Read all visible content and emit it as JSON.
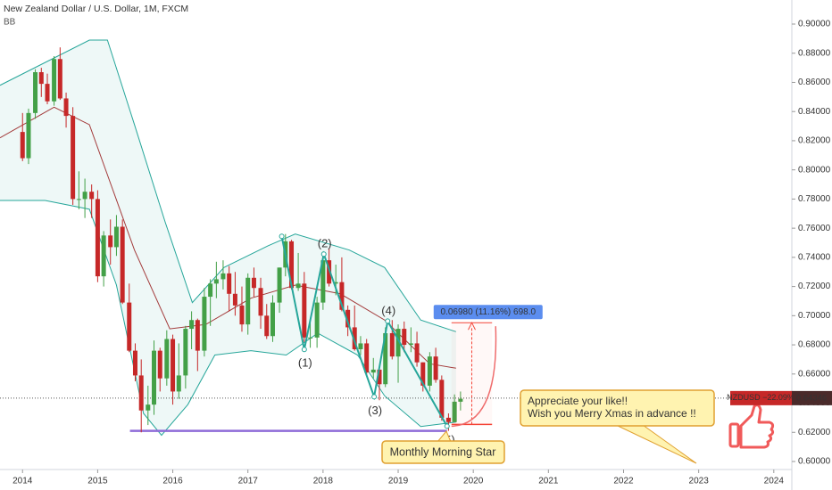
{
  "chart_data": {
    "type": "candlestick",
    "title": "New Zealand Dollar / U.S. Dollar, 1M, FXCM",
    "indicator": "BB",
    "xlim": [
      2013.7,
      2024.24
    ],
    "xticks": [
      2014,
      2015,
      2016,
      2017,
      2018,
      2019,
      2020,
      2021,
      2022,
      2023,
      2024
    ],
    "ylim": [
      0.5945,
      0.9165
    ],
    "yticks": [
      {
        "value": 0.6,
        "label": "0.60000"
      },
      {
        "value": 0.62,
        "label": "0.62000"
      },
      {
        "value": 0.64,
        "label": "0.64000"
      },
      {
        "value": 0.66,
        "label": "0.66000"
      },
      {
        "value": 0.68,
        "label": "0.68000"
      },
      {
        "value": 0.7,
        "label": "0.70000"
      },
      {
        "value": 0.72,
        "label": "0.72000"
      },
      {
        "value": 0.74,
        "label": "0.74000"
      },
      {
        "value": 0.76,
        "label": "0.76000"
      },
      {
        "value": 0.78,
        "label": "0.78000"
      },
      {
        "value": 0.8,
        "label": "0.80000"
      },
      {
        "value": 0.82,
        "label": "0.82000"
      },
      {
        "value": 0.84,
        "label": "0.84000"
      },
      {
        "value": 0.86,
        "label": "0.86000"
      },
      {
        "value": 0.88,
        "label": "0.88000"
      },
      {
        "value": 0.9,
        "label": "0.90000"
      }
    ],
    "up_color": "#43a047",
    "down_color": "#c62828",
    "candles": {
      "x": [
        2014.0,
        2014.08,
        2014.17,
        2014.25,
        2014.33,
        2014.42,
        2014.5,
        2014.58,
        2014.67,
        2014.75,
        2014.83,
        2014.92,
        2015.0,
        2015.08,
        2015.17,
        2015.25,
        2015.33,
        2015.42,
        2015.5,
        2015.58,
        2015.67,
        2015.75,
        2015.83,
        2015.92,
        2016.0,
        2016.08,
        2016.17,
        2016.25,
        2016.33,
        2016.42,
        2016.5,
        2016.58,
        2016.67,
        2016.75,
        2016.83,
        2016.92,
        2017.0,
        2017.08,
        2017.17,
        2017.25,
        2017.33,
        2017.42,
        2017.5,
        2017.58,
        2017.67,
        2017.75,
        2017.83,
        2017.92,
        2018.0,
        2018.08,
        2018.17,
        2018.25,
        2018.33,
        2018.42,
        2018.5,
        2018.58,
        2018.67,
        2018.75,
        2018.83,
        2018.92,
        2019.0,
        2019.08,
        2019.17,
        2019.25,
        2019.33,
        2019.42,
        2019.5,
        2019.58,
        2019.67,
        2019.75,
        2019.83
      ],
      "open": [
        0.826,
        0.808,
        0.839,
        0.867,
        0.859,
        0.847,
        0.876,
        0.849,
        0.837,
        0.78,
        0.78,
        0.785,
        0.78,
        0.727,
        0.755,
        0.747,
        0.761,
        0.709,
        0.676,
        0.659,
        0.635,
        0.639,
        0.676,
        0.657,
        0.684,
        0.648,
        0.659,
        0.691,
        0.697,
        0.676,
        0.713,
        0.722,
        0.725,
        0.729,
        0.715,
        0.707,
        0.694,
        0.726,
        0.719,
        0.7,
        0.686,
        0.709,
        0.733,
        0.751,
        0.719,
        0.722,
        0.685,
        0.685,
        0.709,
        0.738,
        0.722,
        0.723,
        0.704,
        0.692,
        0.677,
        0.681,
        0.661,
        0.663,
        0.653,
        0.688,
        0.672,
        0.691,
        0.68,
        0.681,
        0.668,
        0.652,
        0.672,
        0.656,
        0.63,
        0.627,
        0.641
      ],
      "high": [
        0.839,
        0.842,
        0.869,
        0.87,
        0.866,
        0.878,
        0.884,
        0.853,
        0.843,
        0.799,
        0.794,
        0.79,
        0.786,
        0.758,
        0.766,
        0.769,
        0.766,
        0.722,
        0.681,
        0.67,
        0.652,
        0.683,
        0.678,
        0.69,
        0.687,
        0.681,
        0.693,
        0.703,
        0.698,
        0.719,
        0.725,
        0.737,
        0.738,
        0.734,
        0.73,
        0.72,
        0.729,
        0.733,
        0.726,
        0.708,
        0.714,
        0.733,
        0.756,
        0.752,
        0.743,
        0.73,
        0.697,
        0.713,
        0.744,
        0.746,
        0.735,
        0.74,
        0.707,
        0.707,
        0.686,
        0.684,
        0.671,
        0.664,
        0.692,
        0.697,
        0.694,
        0.696,
        0.692,
        0.689,
        0.668,
        0.675,
        0.678,
        0.659,
        0.633,
        0.646,
        0.648
      ],
      "low": [
        0.806,
        0.804,
        0.835,
        0.85,
        0.845,
        0.844,
        0.848,
        0.829,
        0.776,
        0.773,
        0.767,
        0.767,
        0.723,
        0.72,
        0.735,
        0.741,
        0.708,
        0.675,
        0.655,
        0.62,
        0.625,
        0.632,
        0.648,
        0.652,
        0.639,
        0.643,
        0.65,
        0.677,
        0.662,
        0.672,
        0.693,
        0.712,
        0.718,
        0.703,
        0.7,
        0.689,
        0.687,
        0.713,
        0.691,
        0.684,
        0.682,
        0.702,
        0.727,
        0.718,
        0.717,
        0.682,
        0.678,
        0.678,
        0.704,
        0.72,
        0.714,
        0.703,
        0.686,
        0.676,
        0.673,
        0.659,
        0.657,
        0.642,
        0.651,
        0.67,
        0.654,
        0.675,
        0.675,
        0.665,
        0.648,
        0.648,
        0.654,
        0.628,
        0.621,
        0.627,
        0.635
      ],
      "close": [
        0.808,
        0.839,
        0.867,
        0.859,
        0.847,
        0.876,
        0.849,
        0.837,
        0.78,
        0.78,
        0.785,
        0.78,
        0.727,
        0.755,
        0.747,
        0.761,
        0.709,
        0.676,
        0.659,
        0.635,
        0.639,
        0.676,
        0.657,
        0.684,
        0.648,
        0.659,
        0.691,
        0.697,
        0.676,
        0.713,
        0.722,
        0.725,
        0.729,
        0.715,
        0.707,
        0.694,
        0.726,
        0.719,
        0.7,
        0.686,
        0.709,
        0.733,
        0.751,
        0.719,
        0.722,
        0.685,
        0.685,
        0.709,
        0.738,
        0.722,
        0.723,
        0.704,
        0.692,
        0.677,
        0.681,
        0.661,
        0.663,
        0.653,
        0.688,
        0.672,
        0.691,
        0.68,
        0.681,
        0.668,
        0.652,
        0.672,
        0.656,
        0.63,
        0.627,
        0.641,
        0.643
      ]
    },
    "bollinger": {
      "band_color": "#26a69a",
      "middle_color": "#a33b3b",
      "upper": {
        "x": [
          2013.7,
          2014.89,
          2015.13,
          2015.49,
          2015.9,
          2016.26,
          2016.68,
          2017.27,
          2017.63,
          2018.35,
          2018.82,
          2019.3,
          2019.77
        ],
        "values": [
          0.858,
          0.889,
          0.889,
          0.831,
          0.764,
          0.709,
          0.733,
          0.748,
          0.756,
          0.745,
          0.733,
          0.697,
          0.689
        ]
      },
      "middle": {
        "x": [
          2013.7,
          2014.42,
          2014.89,
          2015.49,
          2015.96,
          2016.44,
          2017.04,
          2017.63,
          2018.23,
          2018.82,
          2019.42,
          2019.77
        ],
        "values": [
          0.822,
          0.843,
          0.831,
          0.745,
          0.691,
          0.694,
          0.712,
          0.721,
          0.715,
          0.697,
          0.667,
          0.664
        ]
      },
      "lower": {
        "x": [
          2013.7,
          2014.3,
          2014.89,
          2015.25,
          2015.61,
          2015.85,
          2016.2,
          2016.56,
          2017.04,
          2017.51,
          2017.93,
          2018.46,
          2018.82,
          2019.3,
          2019.77
        ],
        "values": [
          0.779,
          0.779,
          0.773,
          0.721,
          0.633,
          0.618,
          0.639,
          0.673,
          0.676,
          0.673,
          0.688,
          0.673,
          0.645,
          0.624,
          0.627
        ]
      }
    },
    "support": {
      "x": [
        2015.43,
        2019.65
      ],
      "value": 0.621,
      "color": "#8e6bd8"
    },
    "waves": {
      "color": "#26a69a",
      "points": [
        {
          "x": 2017.45,
          "y": 0.7544
        },
        {
          "x": 2017.75,
          "y": 0.6768,
          "label": "(1)"
        },
        {
          "x": 2018.01,
          "y": 0.7422,
          "label": "(2)"
        },
        {
          "x": 2018.68,
          "y": 0.6444,
          "label": "(3)"
        },
        {
          "x": 2018.86,
          "y": 0.6963,
          "label": "(4)"
        },
        {
          "x": 2019.65,
          "y": 0.6242,
          "label": "(5)"
        }
      ]
    },
    "measure": {
      "label": "0.06980 (11.16%) 698.0",
      "x": [
        2019.71,
        2020.25
      ],
      "from": 0.6254,
      "to": 0.6952,
      "color": "#f44336"
    },
    "last_price": {
      "symbol_label": "NZDUSD −22.09%",
      "value": 0.64346
    },
    "annotations": {
      "star": "Monthly Morning Star",
      "wish": [
        "Appreciate your like!!",
        "Wish you Merry Xmas in  advance !!"
      ]
    }
  }
}
